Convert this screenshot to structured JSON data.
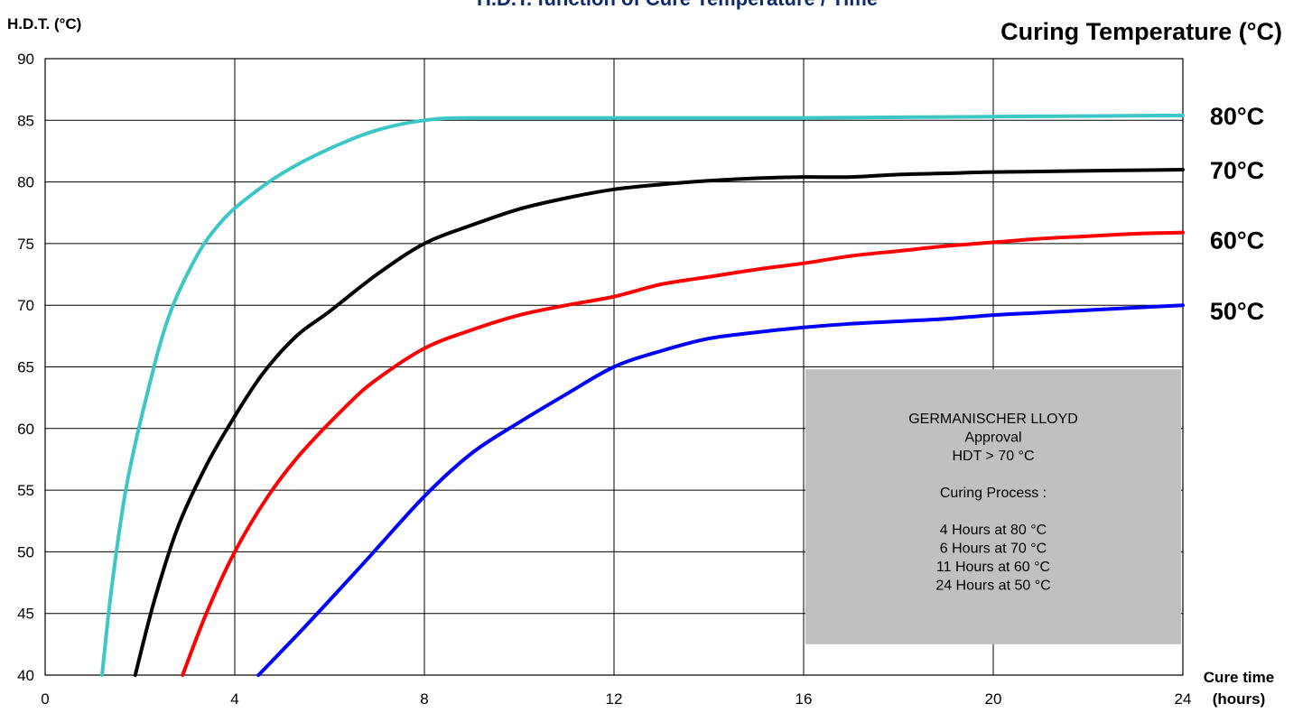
{
  "chart_data": {
    "type": "line",
    "title": "H.D.T. function of Cure Temperature / Time",
    "ylabel": "H.D.T. (°C)",
    "xlabel_line1": "Cure time",
    "xlabel_line2": "(hours)",
    "legend_title": "Curing Temperature (°C)",
    "xlim": [
      0,
      24
    ],
    "ylim": [
      40,
      90
    ],
    "x_ticks": [
      "0",
      "4",
      "8",
      "12",
      "16",
      "20",
      "24"
    ],
    "y_ticks": [
      "40",
      "45",
      "50",
      "55",
      "60",
      "65",
      "70",
      "75",
      "80",
      "85",
      "90"
    ],
    "grid": true,
    "colors": {
      "title": "#0f2a6b",
      "grid": "#000000",
      "note_box": "#c0c0c0"
    },
    "series": [
      {
        "name": "80°C",
        "color": "#3cc6c6",
        "points": [
          [
            1.2,
            40
          ],
          [
            1.4,
            47
          ],
          [
            1.7,
            55
          ],
          [
            2.1,
            62
          ],
          [
            2.6,
            69
          ],
          [
            3.2,
            74
          ],
          [
            3.7,
            76.7
          ],
          [
            4.2,
            78.5
          ],
          [
            5,
            80.7
          ],
          [
            6,
            82.7
          ],
          [
            7,
            84.2
          ],
          [
            8,
            85
          ],
          [
            9,
            85.2
          ],
          [
            12,
            85.2
          ],
          [
            16,
            85.2
          ],
          [
            20,
            85.3
          ],
          [
            24,
            85.4
          ]
        ]
      },
      {
        "name": "70°C",
        "color": "#000000",
        "points": [
          [
            1.9,
            40
          ],
          [
            2.3,
            46
          ],
          [
            2.8,
            52
          ],
          [
            3.4,
            57
          ],
          [
            4,
            61
          ],
          [
            4.6,
            64.5
          ],
          [
            5.3,
            67.5
          ],
          [
            6,
            69.5
          ],
          [
            7,
            72.5
          ],
          [
            8,
            75
          ],
          [
            9,
            76.5
          ],
          [
            10,
            77.8
          ],
          [
            11,
            78.7
          ],
          [
            12,
            79.4
          ],
          [
            13,
            79.8
          ],
          [
            14,
            80.1
          ],
          [
            15,
            80.3
          ],
          [
            16,
            80.4
          ],
          [
            17,
            80.4
          ],
          [
            18,
            80.6
          ],
          [
            19,
            80.7
          ],
          [
            20,
            80.8
          ],
          [
            22,
            80.9
          ],
          [
            24,
            81
          ]
        ]
      },
      {
        "name": "60°C",
        "color": "#ff0000",
        "points": [
          [
            2.9,
            40
          ],
          [
            3.4,
            45
          ],
          [
            4,
            50
          ],
          [
            4.7,
            54.5
          ],
          [
            5.4,
            58
          ],
          [
            6.4,
            62
          ],
          [
            7,
            64
          ],
          [
            8,
            66.5
          ],
          [
            9,
            68
          ],
          [
            10,
            69.2
          ],
          [
            11,
            70
          ],
          [
            12,
            70.7
          ],
          [
            13,
            71.7
          ],
          [
            14,
            72.3
          ],
          [
            15,
            72.9
          ],
          [
            16,
            73.4
          ],
          [
            17,
            74
          ],
          [
            18,
            74.4
          ],
          [
            19,
            74.8
          ],
          [
            20,
            75.1
          ],
          [
            21,
            75.4
          ],
          [
            22,
            75.6
          ],
          [
            23,
            75.8
          ],
          [
            24,
            75.9
          ]
        ]
      },
      {
        "name": "50°C",
        "color": "#0000ff",
        "points": [
          [
            4.5,
            40
          ],
          [
            5.5,
            44
          ],
          [
            6.7,
            49
          ],
          [
            8,
            54.5
          ],
          [
            9,
            58
          ],
          [
            10,
            60.5
          ],
          [
            11,
            62.8
          ],
          [
            12,
            65
          ],
          [
            13,
            66.3
          ],
          [
            14,
            67.3
          ],
          [
            15,
            67.8
          ],
          [
            16,
            68.2
          ],
          [
            17,
            68.5
          ],
          [
            18,
            68.7
          ],
          [
            19,
            68.9
          ],
          [
            20,
            69.2
          ],
          [
            21,
            69.4
          ],
          [
            22,
            69.6
          ],
          [
            23,
            69.8
          ],
          [
            24,
            70
          ]
        ]
      }
    ],
    "annotation_box": {
      "x_range": [
        16,
        24
      ],
      "y_range": [
        42.5,
        64.8
      ],
      "lines": [
        "GERMANISCHER LLOYD",
        "Approval",
        "HDT > 70 °C",
        "",
        "Curing Process :",
        "",
        "4 Hours at 80 °C",
        "6 Hours at 70 °C",
        "11 Hours at  60 °C",
        " 24 Hours at 50 °C"
      ]
    }
  }
}
